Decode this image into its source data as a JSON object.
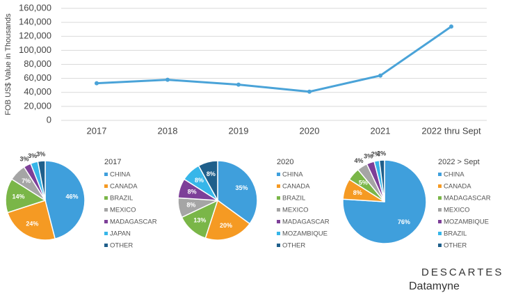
{
  "chart_data": [
    {
      "type": "line",
      "y_label": "FOB US$ Value in Thousands",
      "categories": [
        "2017",
        "2018",
        "2019",
        "2020",
        "2021",
        "2022 thru Sept"
      ],
      "values": [
        53000,
        58000,
        51000,
        41000,
        64000,
        134000
      ],
      "color": "#4aa3d8",
      "ylim": [
        0,
        160000
      ],
      "yticks": [
        0,
        {
          "value": 20000,
          "label": "20,000"
        },
        {
          "value": 40000,
          "label": "40,000"
        },
        {
          "value": 60000,
          "label": "60,000"
        },
        {
          "value": 80000,
          "label": "80,000"
        },
        {
          "value": 100000,
          "label": "100,000"
        },
        {
          "value": 120000,
          "label": "120,000"
        },
        {
          "value": 140000,
          "label": "140,000"
        },
        {
          "value": 160000,
          "label": "160,000"
        }
      ],
      "grid": true
    },
    {
      "type": "pie",
      "title": "2017",
      "categories": [
        "CHINA",
        "CANADA",
        "BRAZIL",
        "MEXICO",
        "MADAGASCAR",
        "JAPAN",
        "OTHER"
      ],
      "values": [
        46,
        24,
        14,
        7,
        3,
        3,
        3
      ],
      "value_labels": [
        "46%",
        "24%",
        "14%",
        "7%",
        "3%",
        "3%",
        "3%"
      ],
      "colors": [
        "#3f9fdc",
        "#f59a23",
        "#7ab648",
        "#a5a5a5",
        "#7d3f98",
        "#37b6e9",
        "#1f5f8b"
      ]
    },
    {
      "type": "pie",
      "title": "2020",
      "categories": [
        "CHINA",
        "CANADA",
        "BRAZIL",
        "MEXICO",
        "MADAGASCAR",
        "MOZAMBIQUE",
        "OTHER"
      ],
      "values": [
        35,
        20,
        13,
        8,
        8,
        8,
        8
      ],
      "value_labels": [
        "35%",
        "20%",
        "13%",
        "8%",
        "8%",
        "8%",
        "8%"
      ],
      "colors": [
        "#3f9fdc",
        "#f59a23",
        "#7ab648",
        "#a5a5a5",
        "#7d3f98",
        "#37b6e9",
        "#1f5f8b"
      ]
    },
    {
      "type": "pie",
      "title": "2022 > Sept",
      "categories": [
        "CHINA",
        "CANADA",
        "MADAGASCAR",
        "MEXICO",
        "MOZAMBIQUE",
        "BRAZIL",
        "OTHER"
      ],
      "values": [
        76,
        8,
        5,
        4,
        3,
        2,
        2
      ],
      "value_labels": [
        "76%",
        "8%",
        "5%",
        "4%",
        "3%",
        "2%",
        "2%"
      ],
      "colors": [
        "#3f9fdc",
        "#f59a23",
        "#7ab648",
        "#a5a5a5",
        "#7d3f98",
        "#37b6e9",
        "#1f5f8b"
      ]
    }
  ],
  "brand": {
    "name": "DESCARTES",
    "product": "Datamyne"
  }
}
